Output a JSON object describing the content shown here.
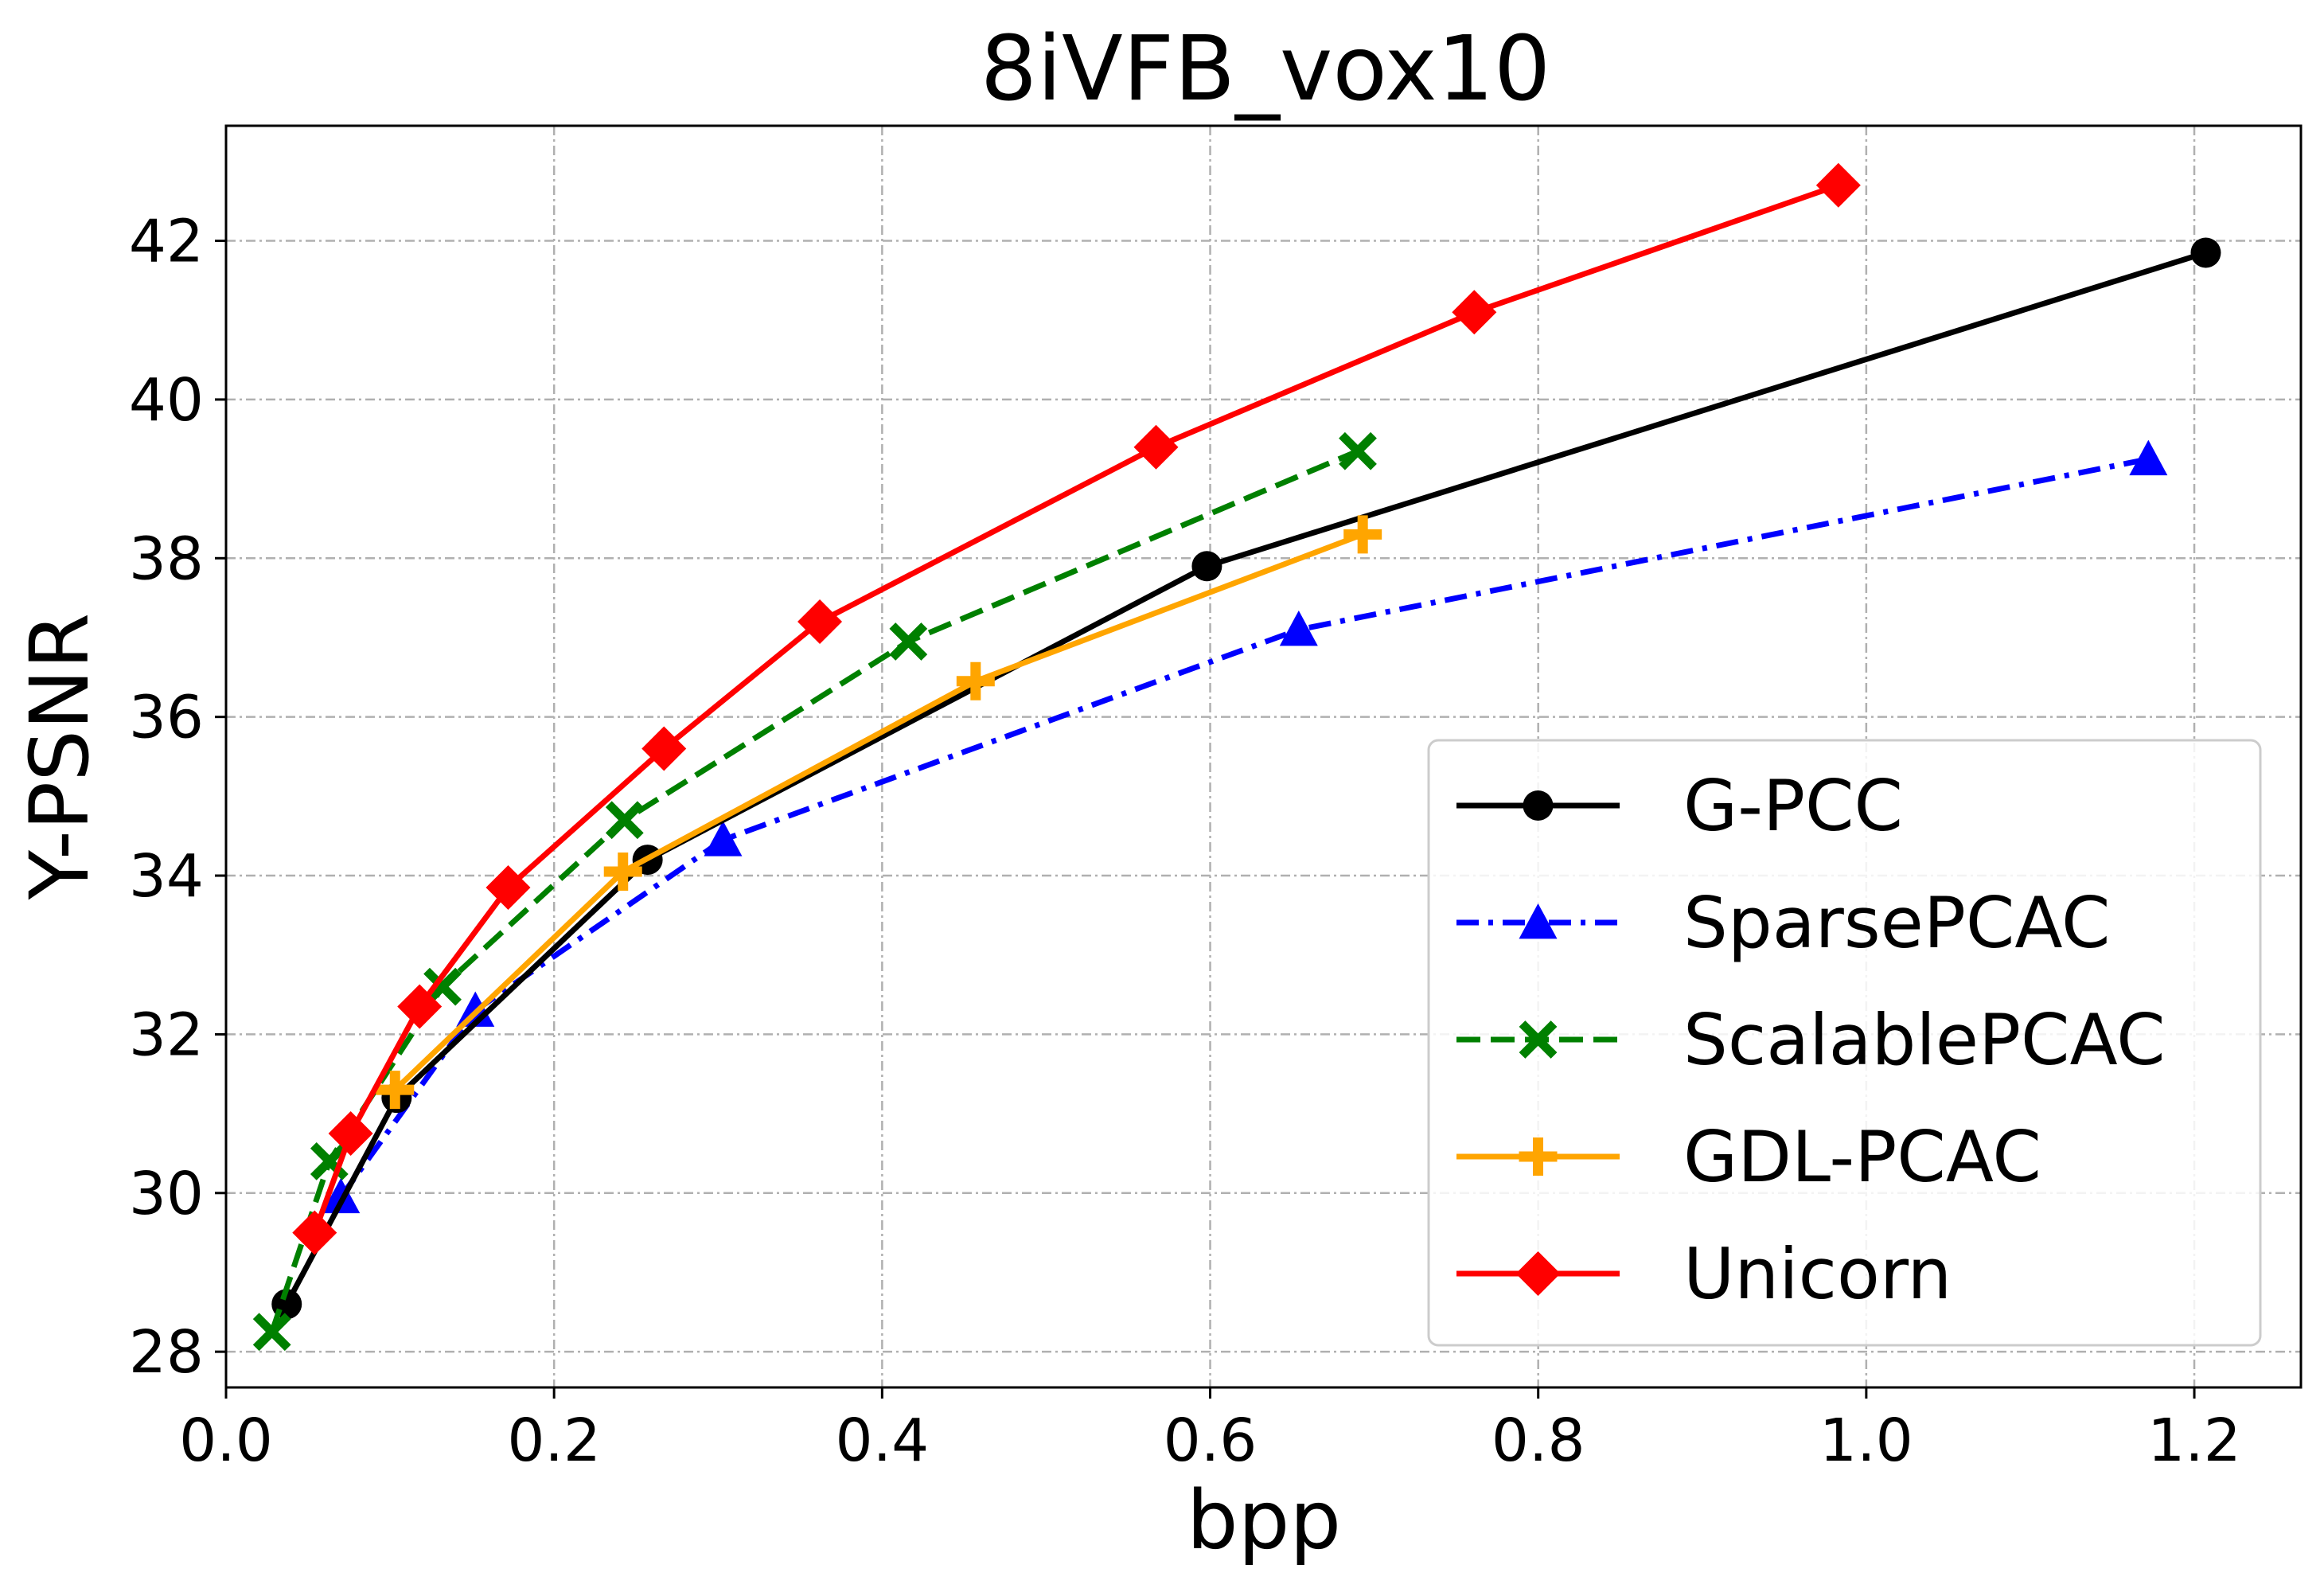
{
  "chart_data": {
    "type": "line",
    "title": "8iVFB_vox10",
    "xlabel": "bpp",
    "ylabel": "Y-PSNR",
    "xlim": [
      0.0,
      1.265
    ],
    "ylim": [
      27.55,
      43.45
    ],
    "xticks": [
      0.0,
      0.2,
      0.4,
      0.6,
      0.8,
      1.0,
      1.2
    ],
    "xtick_labels": [
      "0.0",
      "0.2",
      "0.4",
      "0.6",
      "0.8",
      "1.0",
      "1.2"
    ],
    "yticks": [
      28,
      30,
      32,
      34,
      36,
      38,
      40,
      42
    ],
    "ytick_labels": [
      "28",
      "30",
      "32",
      "34",
      "36",
      "38",
      "40",
      "42"
    ],
    "grid": true,
    "legend_position": "lower right",
    "series": [
      {
        "name": "G-PCC",
        "color": "#000000",
        "marker": "circle",
        "linestyle": "solid",
        "x": [
          0.037,
          0.104,
          0.257,
          0.598,
          1.207
        ],
        "y": [
          28.6,
          31.2,
          34.2,
          37.9,
          41.85
        ]
      },
      {
        "name": "SparsePCAC",
        "color": "#0000ff",
        "marker": "triangle",
        "linestyle": "dashdot",
        "x": [
          0.07,
          0.152,
          0.303,
          0.654,
          1.172
        ],
        "y": [
          29.95,
          32.3,
          34.45,
          37.1,
          39.25
        ]
      },
      {
        "name": "ScalablePCAC",
        "color": "#008000",
        "marker": "x",
        "linestyle": "dashed",
        "x": [
          0.028,
          0.063,
          0.132,
          0.243,
          0.416,
          0.69
        ],
        "y": [
          28.25,
          30.4,
          32.6,
          34.7,
          36.95,
          39.35
        ]
      },
      {
        "name": "GDL-PCAC",
        "color": "#ffa500",
        "marker": "plus",
        "linestyle": "solid",
        "x": [
          0.103,
          0.242,
          0.457,
          0.693
        ],
        "y": [
          31.3,
          34.05,
          36.45,
          38.3
        ]
      },
      {
        "name": "Unicorn",
        "color": "#ff0000",
        "marker": "diamond",
        "linestyle": "solid",
        "x": [
          0.054,
          0.076,
          0.118,
          0.172,
          0.267,
          0.362,
          0.567,
          0.761,
          0.983
        ],
        "y": [
          29.5,
          30.75,
          32.35,
          33.85,
          35.6,
          37.2,
          39.4,
          41.1,
          42.7
        ]
      }
    ]
  }
}
